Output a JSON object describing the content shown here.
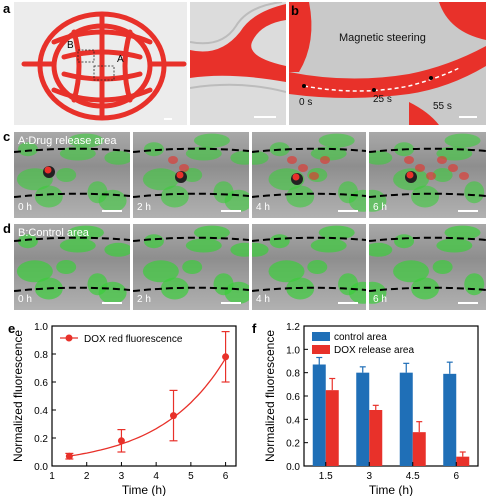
{
  "panel_labels": {
    "a": "a",
    "b": "b",
    "c": "c",
    "d": "d",
    "e": "e",
    "f": "f"
  },
  "panel_a": {
    "region_A": "A",
    "region_B": "B"
  },
  "panel_b": {
    "title": "Magnetic steering",
    "times": [
      "0 s",
      "25 s",
      "55 s"
    ]
  },
  "panel_c": {
    "title": "A:Drug release area",
    "times": [
      "0 h",
      "2 h",
      "4 h",
      "6 h"
    ]
  },
  "panel_d": {
    "title": "B:Control area",
    "times": [
      "0 h",
      "2 h",
      "4 h",
      "6 h"
    ]
  },
  "colors": {
    "red": "#e8312a",
    "blue": "#1f6fb7",
    "green": "#3ccd3c"
  },
  "chart_data": [
    {
      "type": "line",
      "legend_position": "top-left",
      "series": [
        {
          "name": "DOX red fluorescence",
          "x": [
            1.5,
            3,
            4.5,
            6
          ],
          "y": [
            0.07,
            0.18,
            0.36,
            0.78
          ],
          "err": [
            0.02,
            0.08,
            0.18,
            0.18
          ]
        }
      ],
      "xlabel": "Time (h)",
      "ylabel": "Normalized fluorescence",
      "xlim": [
        1,
        6.3
      ],
      "ylim": [
        0,
        1.0
      ],
      "xticks": [
        1,
        2,
        3,
        4,
        5,
        6
      ],
      "yticks": [
        0.0,
        0.2,
        0.4,
        0.6,
        0.8,
        1.0
      ],
      "ytick_labels": [
        "0.0",
        "0.2",
        "0.4",
        "0.6",
        "0.8",
        "1.0"
      ]
    },
    {
      "type": "bar",
      "legend_position": "top-right",
      "categories": [
        "1.5",
        "3",
        "4.5",
        "6"
      ],
      "series": [
        {
          "name": "control area",
          "values": [
            0.87,
            0.8,
            0.8,
            0.79
          ],
          "err": [
            0.06,
            0.05,
            0.08,
            0.1
          ]
        },
        {
          "name": "DOX release area",
          "values": [
            0.65,
            0.48,
            0.29,
            0.08
          ],
          "err": [
            0.1,
            0.04,
            0.09,
            0.04
          ]
        }
      ],
      "xlabel": "Time (h)",
      "ylabel": "Normalized fluorescence",
      "ylim": [
        0,
        1.2
      ],
      "yticks": [
        0.0,
        0.2,
        0.4,
        0.6,
        0.8,
        1.0,
        1.2
      ],
      "ytick_labels": [
        "0.0",
        "0.2",
        "0.4",
        "0.6",
        "0.8",
        "1.0",
        "1.2"
      ]
    }
  ]
}
